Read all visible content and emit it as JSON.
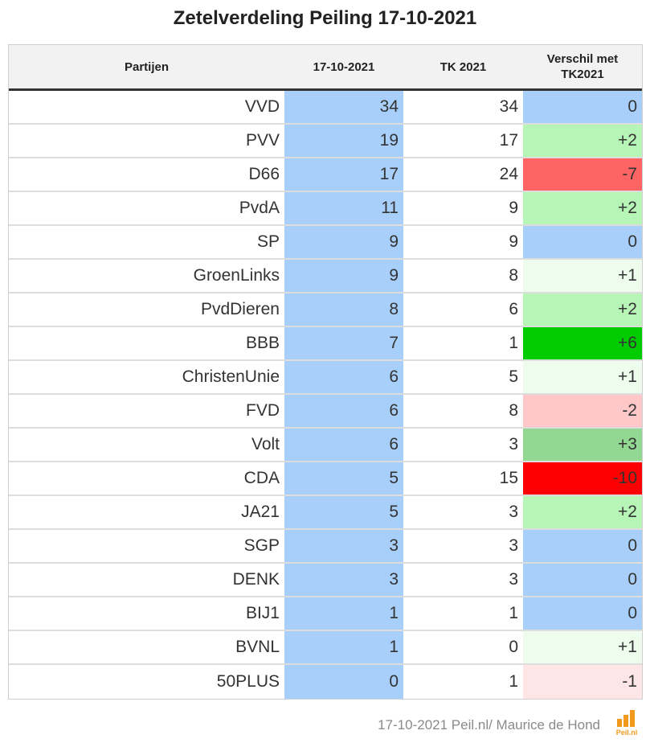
{
  "title": "Zetelverdeling Peiling 17-10-2021",
  "headers": {
    "party": "Partijen",
    "poll": "17-10-2021",
    "tk": "TK 2021",
    "diff_line1": "Verschil met",
    "diff_line2": "TK2021"
  },
  "rows": [
    {
      "party": "VVD",
      "poll": "34",
      "tk": "34",
      "diff": "0",
      "diff_color": "#a8cffa"
    },
    {
      "party": "PVV",
      "poll": "19",
      "tk": "17",
      "diff": "+2",
      "diff_color": "#b6f5b6"
    },
    {
      "party": "D66",
      "poll": "17",
      "tk": "24",
      "diff": "-7",
      "diff_color": "#ff6464"
    },
    {
      "party": "PvdA",
      "poll": "11",
      "tk": "9",
      "diff": "+2",
      "diff_color": "#b6f5b6"
    },
    {
      "party": "SP",
      "poll": "9",
      "tk": "9",
      "diff": "0",
      "diff_color": "#a8cffa"
    },
    {
      "party": "GroenLinks",
      "poll": "9",
      "tk": "8",
      "diff": "+1",
      "diff_color": "#eefcee"
    },
    {
      "party": "PvdDieren",
      "poll": "8",
      "tk": "6",
      "diff": "+2",
      "diff_color": "#b6f5b6"
    },
    {
      "party": "BBB",
      "poll": "7",
      "tk": "1",
      "diff": "+6",
      "diff_color": "#00cc00"
    },
    {
      "party": "ChristenUnie",
      "poll": "6",
      "tk": "5",
      "diff": "+1",
      "diff_color": "#eefcee"
    },
    {
      "party": "FVD",
      "poll": "6",
      "tk": "8",
      "diff": "-2",
      "diff_color": "#ffc8c8"
    },
    {
      "party": "Volt",
      "poll": "6",
      "tk": "3",
      "diff": "+3",
      "diff_color": "#92d892"
    },
    {
      "party": "CDA",
      "poll": "5",
      "tk": "15",
      "diff": "-10",
      "diff_color": "#ff0000"
    },
    {
      "party": "JA21",
      "poll": "5",
      "tk": "3",
      "diff": "+2",
      "diff_color": "#b6f5b6"
    },
    {
      "party": "SGP",
      "poll": "3",
      "tk": "3",
      "diff": "0",
      "diff_color": "#a8cffa"
    },
    {
      "party": "DENK",
      "poll": "3",
      "tk": "3",
      "diff": "0",
      "diff_color": "#a8cffa"
    },
    {
      "party": "BIJ1",
      "poll": "1",
      "tk": "1",
      "diff": "0",
      "diff_color": "#a8cffa"
    },
    {
      "party": "BVNL",
      "poll": "1",
      "tk": "0",
      "diff": "+1",
      "diff_color": "#eefcee"
    },
    {
      "party": "50PLUS",
      "poll": "0",
      "tk": "1",
      "diff": "-1",
      "diff_color": "#ffe6e6"
    }
  ],
  "footer": "17-10-2021 Peil.nl/ Maurice de Hond",
  "logo_text": "Peil.nl",
  "logo_color": "#f29a1e"
}
